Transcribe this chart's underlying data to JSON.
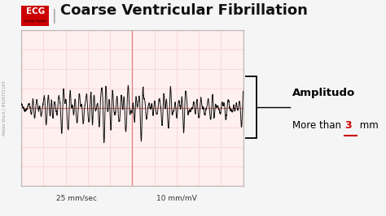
{
  "title": "Coarse Ventricular Fibrillation",
  "ecg_label_bg": "#cc0000",
  "ecg_label_text": "ECG",
  "study_guide_text": "Study Guide",
  "title_fontsize": 13,
  "title_color": "#111111",
  "grid_bg": "#fff0f0",
  "major_grid_color": "#e08080",
  "minor_grid_color": "#f5c8c8",
  "ecg_color": "#111111",
  "annotation_bold": "Amplitudo",
  "annotation_normal": "More than ",
  "annotation_number": "3",
  "annotation_unit": " mm",
  "annotation_number_color": "#cc0000",
  "label_25": "25 mm/sec",
  "label_10": "10 mm/mV",
  "watermark": "Adobe Stock | #616721163",
  "fig_bg": "#f5f5f5",
  "fig_width": 4.74,
  "fig_height": 2.66,
  "dpi": 100
}
